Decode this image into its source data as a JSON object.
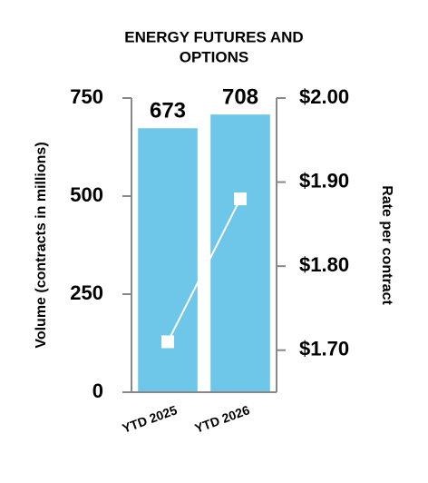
{
  "chart_data": {
    "type": "bar",
    "title": [
      "ENERGY FUTURES AND",
      "OPTIONS"
    ],
    "y_label": "Volume (contracts in millions)",
    "y2_label": "Rate per contract",
    "categories": [
      "YTD 2025",
      "YTD 2026"
    ],
    "series": [
      {
        "type": "bar",
        "color": "#6ec6e8",
        "values": [
          673,
          708
        ]
      },
      {
        "type": "line",
        "axis": "y2",
        "color": "#ffffff",
        "values": [
          1.71,
          1.88
        ]
      }
    ],
    "ylim": [
      0,
      750
    ],
    "yticks": [
      0,
      250,
      500,
      750
    ],
    "y2lim": [
      1.65,
      2.0
    ],
    "y2ticks": [
      {
        "value": 1.7,
        "label": "$1.70"
      },
      {
        "value": 1.8,
        "label": "$1.80"
      },
      {
        "value": 1.9,
        "label": "$1.90"
      },
      {
        "value": 2.0,
        "label": "$2.00"
      }
    ]
  }
}
